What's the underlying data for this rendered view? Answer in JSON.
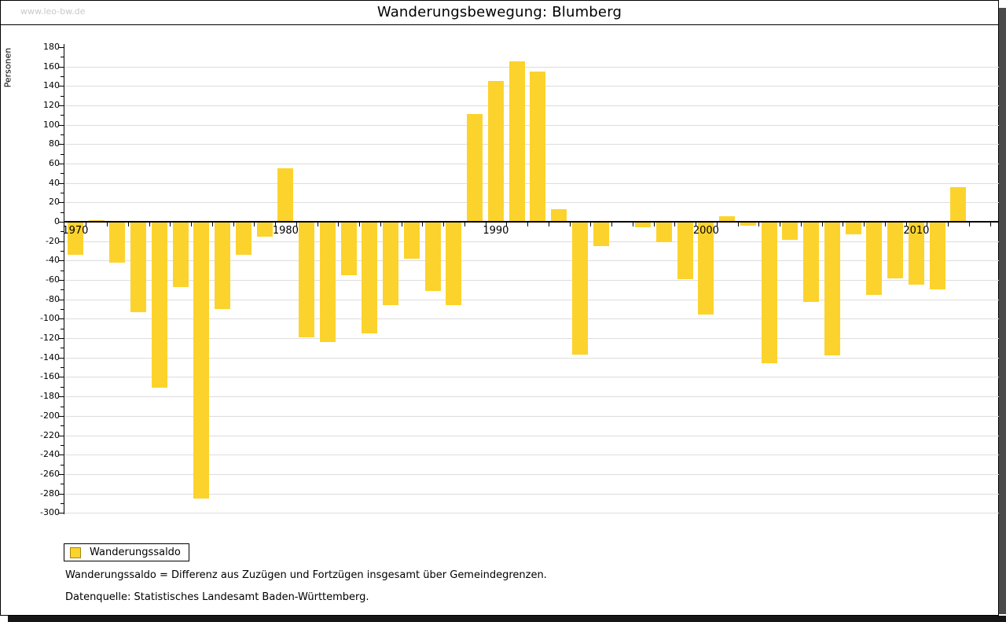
{
  "watermark": "www.leo-bw.de",
  "title": "Wanderungsbewegung: Blumberg",
  "legend": {
    "label": "Wanderungssaldo"
  },
  "footnotes": [
    "Wanderungssaldo = Differenz aus Zuzügen und Fortzügen insgesamt über Gemeindegrenzen.",
    "Datenquelle: Statistisches Landesamt Baden-Württemberg."
  ],
  "colors": {
    "bar": "#FCD32C",
    "bar_border": "#9d8a14",
    "grid": "#dddddd",
    "axis": "#000000",
    "watermark": "#c9c9c9",
    "shadow": "#4b4b4b"
  },
  "chart_data": {
    "type": "bar",
    "title": "Wanderungsbewegung: Blumberg",
    "xlabel": "",
    "ylabel": "Personen",
    "series_name": "Wanderungssaldo",
    "x": [
      1970,
      1971,
      1972,
      1973,
      1974,
      1975,
      1976,
      1977,
      1978,
      1979,
      1980,
      1981,
      1982,
      1983,
      1984,
      1985,
      1986,
      1987,
      1988,
      1989,
      1990,
      1991,
      1992,
      1993,
      1994,
      1995,
      1996,
      1997,
      1998,
      1999,
      2000,
      2001,
      2002,
      2003,
      2004,
      2005,
      2006,
      2007,
      2008,
      2009,
      2010,
      2011,
      2012
    ],
    "values": [
      -34,
      2,
      -42,
      -93,
      -171,
      -67,
      -285,
      -90,
      -34,
      -15,
      55,
      -119,
      -124,
      -55,
      -115,
      -86,
      -38,
      -71,
      -86,
      111,
      145,
      165,
      155,
      13,
      -137,
      -25,
      0,
      -6,
      -21,
      -59,
      -96,
      6,
      -4,
      -146,
      -19,
      -83,
      -138,
      -13,
      -75,
      -58,
      -65,
      -70,
      36
    ],
    "ylim": [
      -300,
      180
    ],
    "ytick_step": 20,
    "yticks": [
      180,
      160,
      140,
      120,
      100,
      80,
      60,
      40,
      20,
      0,
      -20,
      -40,
      -60,
      -80,
      -100,
      -120,
      -140,
      -160,
      -180,
      -200,
      -220,
      -240,
      -260,
      -280,
      -300
    ],
    "xticks_labeled": [
      1970,
      1980,
      1990,
      2000,
      2010
    ],
    "grid": true,
    "legend_position": "bottom-left",
    "bar_color": "#FCD32C"
  }
}
